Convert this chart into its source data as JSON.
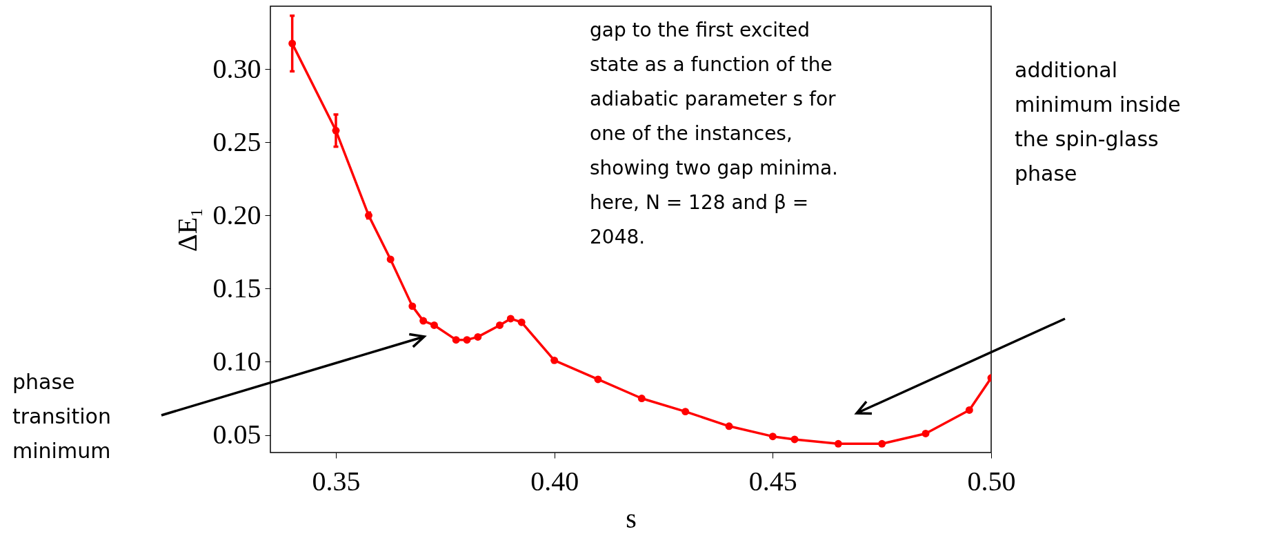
{
  "chart_data": {
    "type": "line",
    "xlabel": "s",
    "ylabel": "ΔE₁",
    "x": [
      0.34,
      0.35,
      0.3575,
      0.3625,
      0.3675,
      0.37,
      0.3725,
      0.3775,
      0.38,
      0.3825,
      0.3875,
      0.39,
      0.3925,
      0.4,
      0.41,
      0.42,
      0.43,
      0.44,
      0.45,
      0.455,
      0.465,
      0.475,
      0.485,
      0.495,
      0.5
    ],
    "series": [
      {
        "color": "#ff0000",
        "values": [
          0.3175,
          0.258,
          0.2,
          0.17,
          0.138,
          0.128,
          0.125,
          0.115,
          0.115,
          0.117,
          0.125,
          0.1295,
          0.127,
          0.101,
          0.088,
          0.075,
          0.066,
          0.056,
          0.049,
          0.047,
          0.044,
          0.044,
          0.051,
          0.067,
          0.089
        ],
        "errors": [
          0.019,
          0.011,
          0.002,
          null,
          null,
          null,
          null,
          null,
          null,
          null,
          null,
          null,
          null,
          null,
          null,
          null,
          null,
          null,
          null,
          null,
          null,
          null,
          null,
          null,
          null
        ]
      }
    ],
    "xlim": [
      0.335,
      0.5
    ],
    "ylim": [
      0.038,
      0.343
    ],
    "xticks": [
      0.35,
      {
        "value": 0.4,
        "label": "0.40"
      },
      0.45,
      {
        "value": 0.5,
        "label": "0.50"
      }
    ],
    "yticks": [
      0.05,
      {
        "value": 0.1,
        "label": "0.10"
      },
      0.15,
      {
        "value": 0.2,
        "label": "0.20"
      },
      0.25,
      {
        "value": 0.3,
        "label": "0.30"
      }
    ],
    "marker": "circle",
    "line_style": "solid",
    "grid": false,
    "annotations": [
      "gap to the first excited state as a function of the adiabatic parameter s for one of the instances, showing two gap minima. here, N = 128 and β = 2048.",
      "phase transition minimum",
      "additional minimum inside the spin-glass phase"
    ]
  }
}
